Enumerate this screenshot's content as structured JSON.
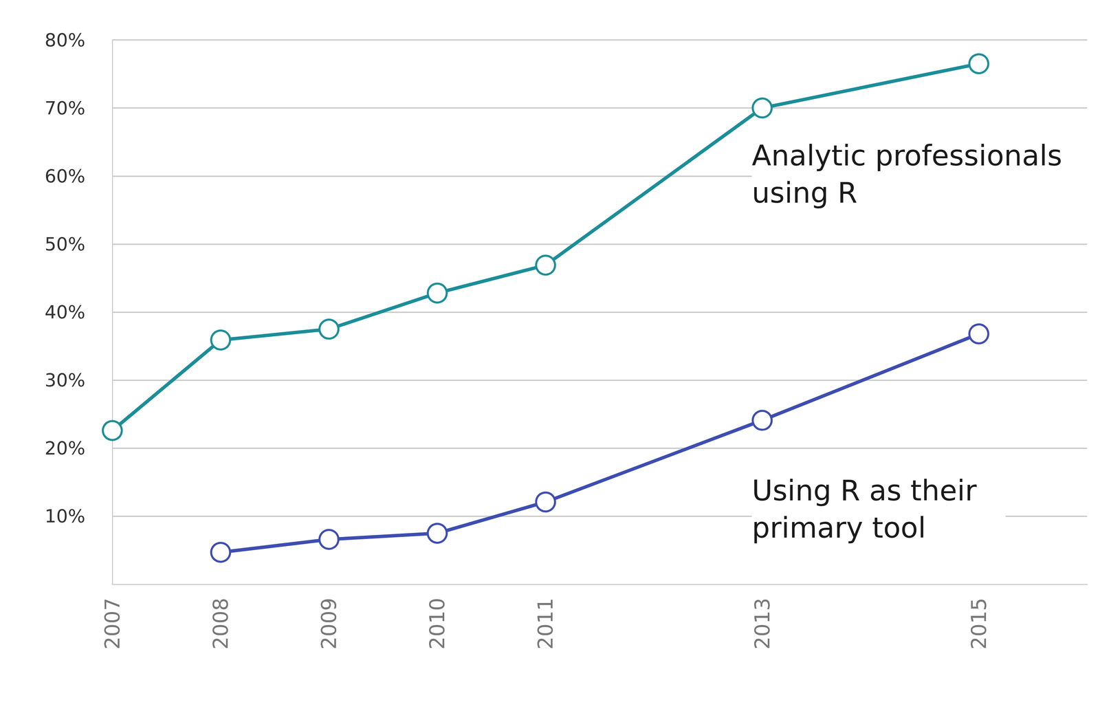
{
  "chart_data": {
    "type": "line",
    "x": [
      2007,
      2008,
      2009,
      2010,
      2011,
      2013,
      2015
    ],
    "series": [
      {
        "name": "Analytic professionals using R",
        "color": "#1b8e99",
        "values": [
          22.6,
          35.9,
          37.5,
          42.8,
          46.9,
          70.0,
          76.5
        ]
      },
      {
        "name": "Using R as their primary tool",
        "color": "#3d4db1",
        "values": [
          null,
          4.7,
          6.6,
          7.5,
          12.1,
          24.1,
          36.8
        ]
      }
    ],
    "xlim": [
      2007,
      2016
    ],
    "xticks": [
      2007,
      2008,
      2009,
      2010,
      2011,
      2013,
      2015
    ],
    "ylim": [
      0,
      80
    ],
    "yticks": [
      {
        "value": 10,
        "label": "10%"
      },
      {
        "value": 20,
        "label": "20%"
      },
      {
        "value": 30,
        "label": "30%"
      },
      {
        "value": 40,
        "label": "40%"
      },
      {
        "value": 50,
        "label": "50%"
      },
      {
        "value": 60,
        "label": "60%"
      },
      {
        "value": 70,
        "label": "70%"
      },
      {
        "value": 80,
        "label": "80%"
      }
    ],
    "grid": true,
    "marker": "circle"
  }
}
